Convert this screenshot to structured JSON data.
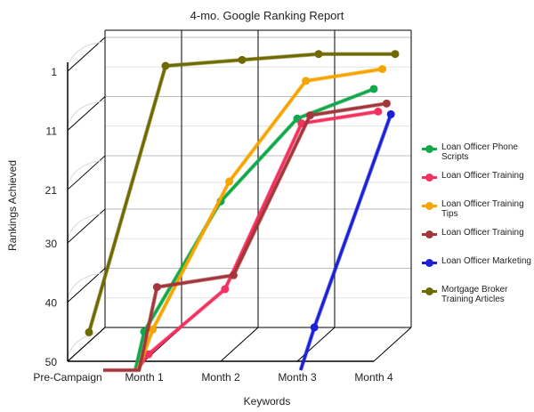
{
  "chart_data": {
    "type": "line",
    "title": "4-mo. Google Ranking Report",
    "xlabel": "Keywords",
    "ylabel": "Rankings Achieved",
    "categories": [
      "Pre-Campaign",
      "Month 1",
      "Month 2",
      "Month 3",
      "Month 4"
    ],
    "y_ticks": [
      "1",
      "11",
      "21",
      "30",
      "40",
      "50"
    ],
    "ylim": [
      1,
      50
    ],
    "y_reversed": true,
    "grid": true,
    "legend_position": "right",
    "series": [
      {
        "name": "Loan Officer Phone Scripts",
        "color": "#12a84a",
        "values": [
          null,
          45,
          23,
          9,
          4
        ]
      },
      {
        "name": "Loan Officer Training",
        "color": "#f4305f",
        "values": [
          null,
          49,
          38,
          10,
          8
        ]
      },
      {
        "name": "Loan Officer Training Tips",
        "color": "#f5a400",
        "values": [
          null,
          45,
          20,
          3,
          1
        ]
      },
      {
        "name": "Loan Officer Training",
        "color": "#a2363a",
        "values": [
          null,
          38,
          36,
          9,
          7
        ]
      },
      {
        "name": "Loan Officer Marketing",
        "color": "#1c20d6",
        "values": [
          null,
          null,
          null,
          45,
          9
        ]
      },
      {
        "name": "Mortgage Broker Training Articles",
        "color": "#6e6a00",
        "values": [
          46,
          1,
          0,
          -1,
          -1
        ]
      }
    ]
  }
}
